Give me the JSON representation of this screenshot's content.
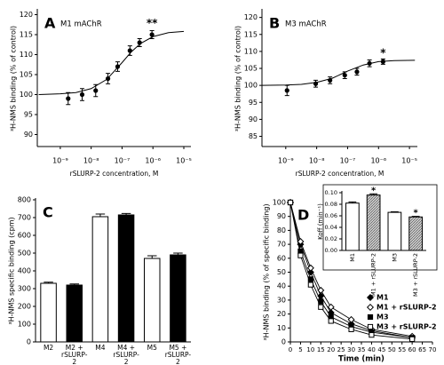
{
  "chart_data": [
    {
      "type": "scatter",
      "panel": "A",
      "title": "M1 mAChR",
      "x_label": "rSLURP-2 concentration, M",
      "y_label": "³H-NMS binding (% of control)",
      "xscale": "log",
      "color": "#000000",
      "x": [
        1.8e-09,
        5.1e-09,
        1.4e-08,
        3.5e-08,
        7.2e-08,
        1.8e-07,
        3.7e-07,
        9.3e-07
      ],
      "values": [
        99,
        100,
        101,
        104,
        107,
        111,
        113,
        115
      ],
      "errors": [
        1.5,
        1.5,
        1.5,
        1.3,
        1.2,
        1.2,
        1,
        1
      ],
      "fit": {
        "x": [
          2e-10,
          1e-09,
          3.2e-09,
          1e-08,
          3.2e-08,
          1e-07,
          2e-07,
          4e-07,
          1e-06,
          3.2e-06,
          1e-05
        ],
        "values": [
          100,
          100.2,
          100.5,
          101.5,
          103.8,
          108,
          110.7,
          112.8,
          114.5,
          115.5,
          115.8
        ]
      },
      "xlim": [
        1.8e-10,
        1.7e-05
      ],
      "xticks": [
        {
          "value": 1e-09,
          "label": "10⁻⁹"
        },
        {
          "value": 1e-08,
          "label": "10⁻⁸"
        },
        {
          "value": 1e-07,
          "label": "10⁻⁷"
        },
        {
          "value": 1e-06,
          "label": "10⁻⁶"
        },
        {
          "value": 1e-05,
          "label": "10⁻⁵"
        }
      ],
      "ylim": [
        87,
        121
      ],
      "yticks": [
        90,
        95,
        100,
        105,
        110,
        115,
        120
      ],
      "annotations": [
        {
          "text": "**",
          "x": 9.3e-07,
          "y": 117.8
        }
      ]
    },
    {
      "type": "scatter",
      "panel": "B",
      "title": "M3 mAChR",
      "x_label": "rSLURP-2 concentration, M",
      "y_label": "³H-NMS binding (% of control)",
      "xscale": "log",
      "color": "#000000",
      "x": [
        1.1e-09,
        9.3e-09,
        2.7e-08,
        8.1e-08,
        2e-07,
        5.1e-07,
        1.4e-06
      ],
      "values": [
        98.5,
        100.5,
        101.5,
        103,
        104,
        106.5,
        107
      ],
      "errors": [
        1.5,
        1,
        1,
        1,
        1,
        1,
        0.8
      ],
      "fit": {
        "x": [
          1.7e-10,
          1e-09,
          3.2e-09,
          1e-08,
          3.2e-08,
          1e-07,
          3.2e-07,
          1e-06,
          3.2e-06,
          1.5e-05
        ],
        "values": [
          100,
          100.1,
          100.3,
          100.9,
          102.1,
          104.2,
          106,
          107,
          107.3,
          107.4
        ]
      },
      "xlim": [
        1.7e-10,
        1.8e-05
      ],
      "xticks": [
        {
          "value": 1e-09,
          "label": "10⁻⁹"
        },
        {
          "value": 1e-08,
          "label": "10⁻⁸"
        },
        {
          "value": 1e-07,
          "label": "10⁻⁷"
        },
        {
          "value": 1e-06,
          "label": "10⁻⁶"
        },
        {
          "value": 1e-05,
          "label": "10⁻⁵"
        }
      ],
      "ylim": [
        82,
        122
      ],
      "yticks": [
        85,
        90,
        95,
        100,
        105,
        110,
        115,
        120
      ],
      "annotations": [
        {
          "text": "*",
          "x": 1.4e-06,
          "y": 109.5
        }
      ]
    },
    {
      "type": "bar",
      "panel": "C",
      "y_label": "³H-NMS specific binding (cpm)",
      "categories": [
        "M2",
        "M2 + rSLURP-2",
        "M4",
        "M4 + rSLURP-2",
        "M5",
        "M5 + rSLURP-2"
      ],
      "values": [
        330,
        320,
        705,
        715,
        470,
        490
      ],
      "errors": [
        6,
        6,
        15,
        8,
        15,
        10
      ],
      "colors": [
        "#ffffff",
        "#000000",
        "#ffffff",
        "#000000",
        "#ffffff",
        "#000000"
      ],
      "ylim": [
        0,
        800
      ],
      "yticks": [
        0,
        100,
        200,
        300,
        400,
        500,
        600,
        700,
        800
      ]
    },
    {
      "type": "line",
      "panel": "D",
      "x_label": "Time (min)",
      "y_label": "³H-NMS binding (% of specific binding)",
      "x": [
        0,
        5,
        10,
        15,
        20,
        30,
        40,
        60
      ],
      "series": [
        {
          "name": "M1",
          "color": "#000000",
          "marker": "diamond",
          "filled": true,
          "values": [
            100,
            70,
            50,
            33,
            21,
            13,
            8,
            3
          ]
        },
        {
          "name": "M1 + rSLURP-2",
          "color": "#000000",
          "marker": "diamond",
          "filled": false,
          "values": [
            100,
            72,
            53,
            37,
            25,
            16,
            9,
            4
          ]
        },
        {
          "name": "M3",
          "color": "#000000",
          "marker": "square",
          "filled": true,
          "values": [
            100,
            65,
            45,
            29,
            18,
            11,
            7,
            3
          ]
        },
        {
          "name": "M3 + rSLURP-2",
          "color": "#000000",
          "marker": "square",
          "filled": false,
          "values": [
            100,
            62,
            41,
            25,
            15,
            9,
            5,
            2
          ]
        }
      ],
      "xlim": [
        0,
        70
      ],
      "xticks": [
        0,
        5,
        10,
        15,
        20,
        25,
        30,
        35,
        40,
        45,
        50,
        55,
        60,
        65,
        70
      ],
      "ylim": [
        0,
        100
      ],
      "yticks": [
        0,
        10,
        20,
        30,
        40,
        50,
        60,
        70,
        80,
        90,
        100
      ],
      "legend": "right",
      "inset": {
        "type": "bar",
        "y_label": "Koff (min⁻¹)",
        "categories": [
          "M1",
          "M1 + rSLURP-2",
          "M3",
          "M3 + rSLURP-2"
        ],
        "values": [
          0.082,
          0.096,
          0.066,
          0.058
        ],
        "errors": [
          0.002,
          0.002,
          0.001,
          0.001
        ],
        "colors": [
          "#ffffff",
          "#bbbbbb",
          "#ffffff",
          "#bbbbbb"
        ],
        "hatched": [
          false,
          true,
          false,
          true
        ],
        "ylim": [
          0,
          0.1
        ],
        "yticks": [
          {
            "value": 0,
            "label": "0.00"
          },
          {
            "value": 0.02,
            "label": "0.02"
          },
          {
            "value": 0.04,
            "label": "0.04"
          },
          {
            "value": 0.06,
            "label": "0.06"
          },
          {
            "value": 0.08,
            "label": "0.08"
          },
          {
            "value": 0.1,
            "label": "0.10"
          }
        ],
        "annotations": [
          {
            "text": "*",
            "category": 1
          },
          {
            "text": "*",
            "category": 3
          }
        ]
      }
    }
  ]
}
